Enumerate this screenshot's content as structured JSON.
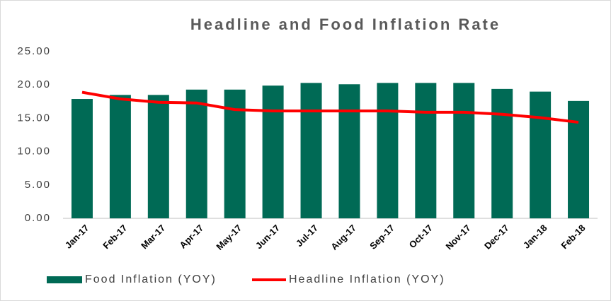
{
  "chart_data": {
    "type": "bar_line",
    "title": "Headline and Food Inflation Rate",
    "categories": [
      "Jan-17",
      "Feb-17",
      "Mar-17",
      "Apr-17",
      "May-17",
      "Jun-17",
      "Jul-17",
      "Aug-17",
      "Sep-17",
      "Oct-17",
      "Nov-17",
      "Dec-17",
      "Jan-18",
      "Feb-18"
    ],
    "series": [
      {
        "name": "Food Inflation (YOY)",
        "type": "bar",
        "color": "#006a55",
        "values": [
          17.9,
          18.5,
          18.5,
          19.3,
          19.3,
          19.9,
          20.3,
          20.1,
          20.3,
          20.3,
          20.3,
          19.4,
          19.0,
          17.6
        ]
      },
      {
        "name": "Headline Inflation (YOY)",
        "type": "line",
        "color": "#ff0000",
        "values": [
          18.9,
          17.9,
          17.4,
          17.3,
          16.3,
          16.1,
          16.1,
          16.1,
          16.1,
          15.9,
          15.9,
          15.6,
          15.1,
          14.4
        ]
      }
    ],
    "ylim": [
      0,
      25
    ],
    "yticks": [
      {
        "value": 0,
        "label": "0.00"
      },
      {
        "value": 5,
        "label": "5.00"
      },
      {
        "value": 10,
        "label": "10.00"
      },
      {
        "value": 15,
        "label": "15.00"
      },
      {
        "value": 20,
        "label": "20.00"
      },
      {
        "value": 25,
        "label": "25.00"
      }
    ],
    "legend": "bottom"
  }
}
